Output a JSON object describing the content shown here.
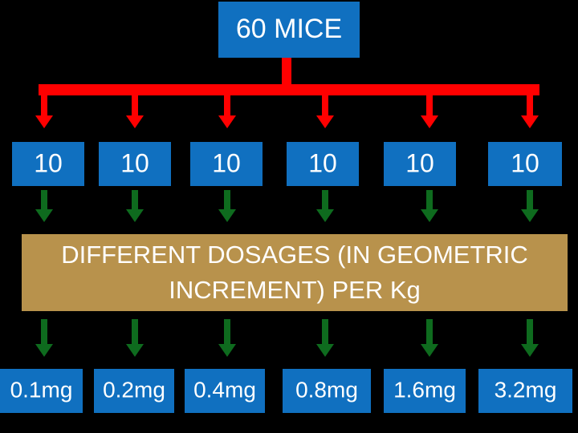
{
  "header": {
    "title": "60 MICE"
  },
  "groups": [
    "10",
    "10",
    "10",
    "10",
    "10",
    "10"
  ],
  "dosage_box": {
    "lines": [
      "DIFFERENT DOSAGES (IN GEOMETRIC",
      "INCREMENT) PER Kg"
    ]
  },
  "doses": [
    "0.1mg",
    "0.2mg",
    "0.4mg",
    "0.8mg",
    "1.6mg",
    "3.2mg"
  ]
}
